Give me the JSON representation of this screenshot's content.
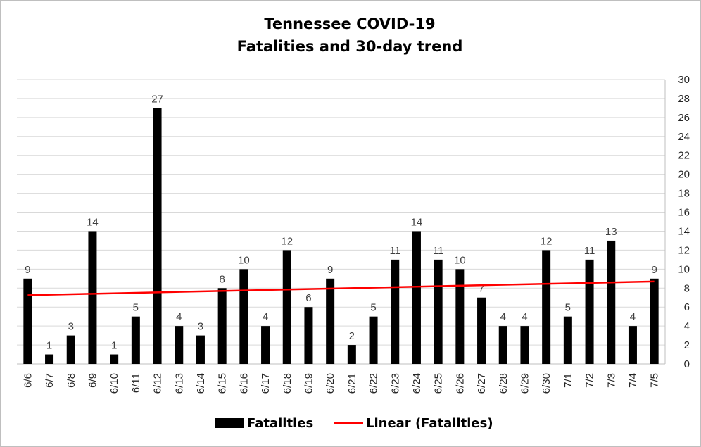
{
  "chart_data": {
    "type": "bar",
    "title_line1": "Tennessee COVID-19",
    "title_line2": "Fatalities and 30-day trend",
    "categories": [
      "6/6",
      "6/7",
      "6/8",
      "6/9",
      "6/10",
      "6/11",
      "6/12",
      "6/13",
      "6/14",
      "6/15",
      "6/16",
      "6/17",
      "6/18",
      "6/19",
      "6/20",
      "6/21",
      "6/22",
      "6/23",
      "6/24",
      "6/25",
      "6/26",
      "6/27",
      "6/28",
      "6/29",
      "6/30",
      "7/1",
      "7/2",
      "7/3",
      "7/4",
      "7/5"
    ],
    "series": [
      {
        "name": "Fatalities",
        "color": "#000000",
        "values": [
          9,
          1,
          3,
          14,
          1,
          5,
          27,
          4,
          3,
          8,
          10,
          4,
          12,
          6,
          9,
          2,
          5,
          11,
          14,
          11,
          10,
          7,
          4,
          4,
          12,
          5,
          11,
          13,
          4,
          9
        ]
      }
    ],
    "trendline": {
      "name": "Linear (Fatalities)",
      "color": "#ff0000",
      "start": 7.25,
      "end": 8.7
    },
    "ylim": [
      0,
      30
    ],
    "yticks": [
      0,
      2,
      4,
      6,
      8,
      10,
      12,
      14,
      16,
      18,
      20,
      22,
      24,
      26,
      28,
      30
    ],
    "y_axis_side": "right",
    "grid": true,
    "legend_position": "bottom"
  }
}
